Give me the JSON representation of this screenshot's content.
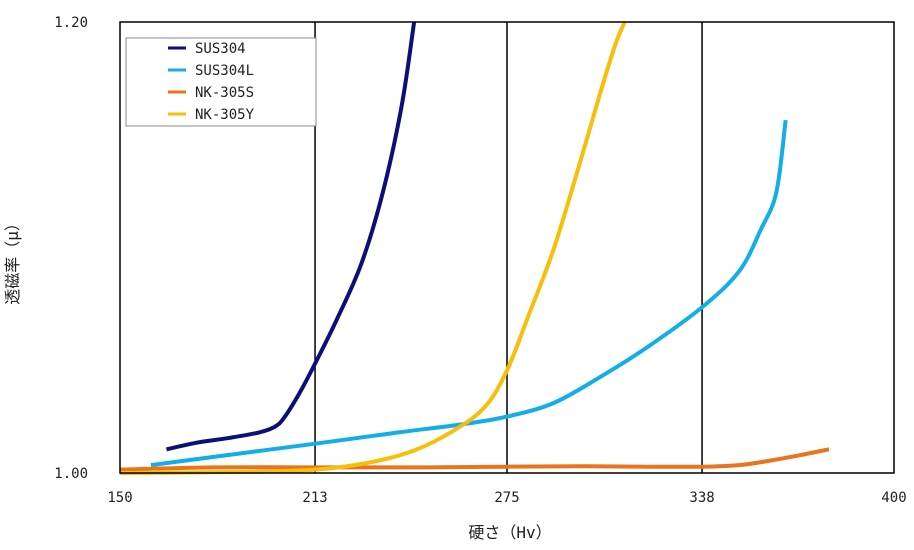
{
  "chart_data": {
    "type": "line",
    "title": "",
    "xlabel": "硬さ（Hv）",
    "ylabel": "透磁率（μ）",
    "xlim": [
      150,
      400
    ],
    "ylim": [
      1.0,
      1.2
    ],
    "x_ticks": [
      "150",
      "213",
      "275",
      "338",
      "400"
    ],
    "y_ticks": [
      "1.00",
      "1.20"
    ],
    "vertical_gridlines": [
      213,
      275,
      338
    ],
    "grid": "vertical",
    "legend_position": "top-left",
    "series": [
      {
        "name": "SUS304",
        "color": "#0a0f7a",
        "x": [
          165,
          175,
          185,
          195,
          200,
          203,
          208,
          213,
          220,
          228,
          235,
          241,
          245
        ],
        "y": [
          1.0105,
          1.0135,
          1.0155,
          1.018,
          1.0205,
          1.0245,
          1.0355,
          1.0485,
          1.068,
          1.093,
          1.125,
          1.163,
          1.2
        ]
      },
      {
        "name": "SUS304L",
        "color": "#12aee8",
        "x": [
          160,
          185,
          213,
          240,
          260,
          275,
          290,
          305,
          320,
          338,
          350,
          357,
          362,
          365
        ],
        "y": [
          1.0035,
          1.008,
          1.013,
          1.018,
          1.0215,
          1.025,
          1.031,
          1.0425,
          1.0555,
          1.0735,
          1.0895,
          1.108,
          1.1245,
          1.1565
        ]
      },
      {
        "name": "NK-305S",
        "color": "#e8741c",
        "x": [
          150,
          180,
          213,
          250,
          275,
          300,
          320,
          338,
          350,
          360,
          370,
          379
        ],
        "y": [
          1.0015,
          1.0025,
          1.0025,
          1.0025,
          1.0028,
          1.003,
          1.0028,
          1.0028,
          1.0035,
          1.0055,
          1.008,
          1.0105
        ]
      },
      {
        "name": "NK-305Y",
        "color": "#f8be0a",
        "x": [
          150,
          190,
          213,
          230,
          245,
          258,
          268,
          275,
          282,
          290,
          298,
          305,
          310,
          313
        ],
        "y": [
          1.0,
          1.0005,
          1.0015,
          1.0045,
          1.01,
          1.019,
          1.0295,
          1.0455,
          1.07,
          1.099,
          1.135,
          1.168,
          1.19,
          1.2
        ]
      }
    ]
  }
}
